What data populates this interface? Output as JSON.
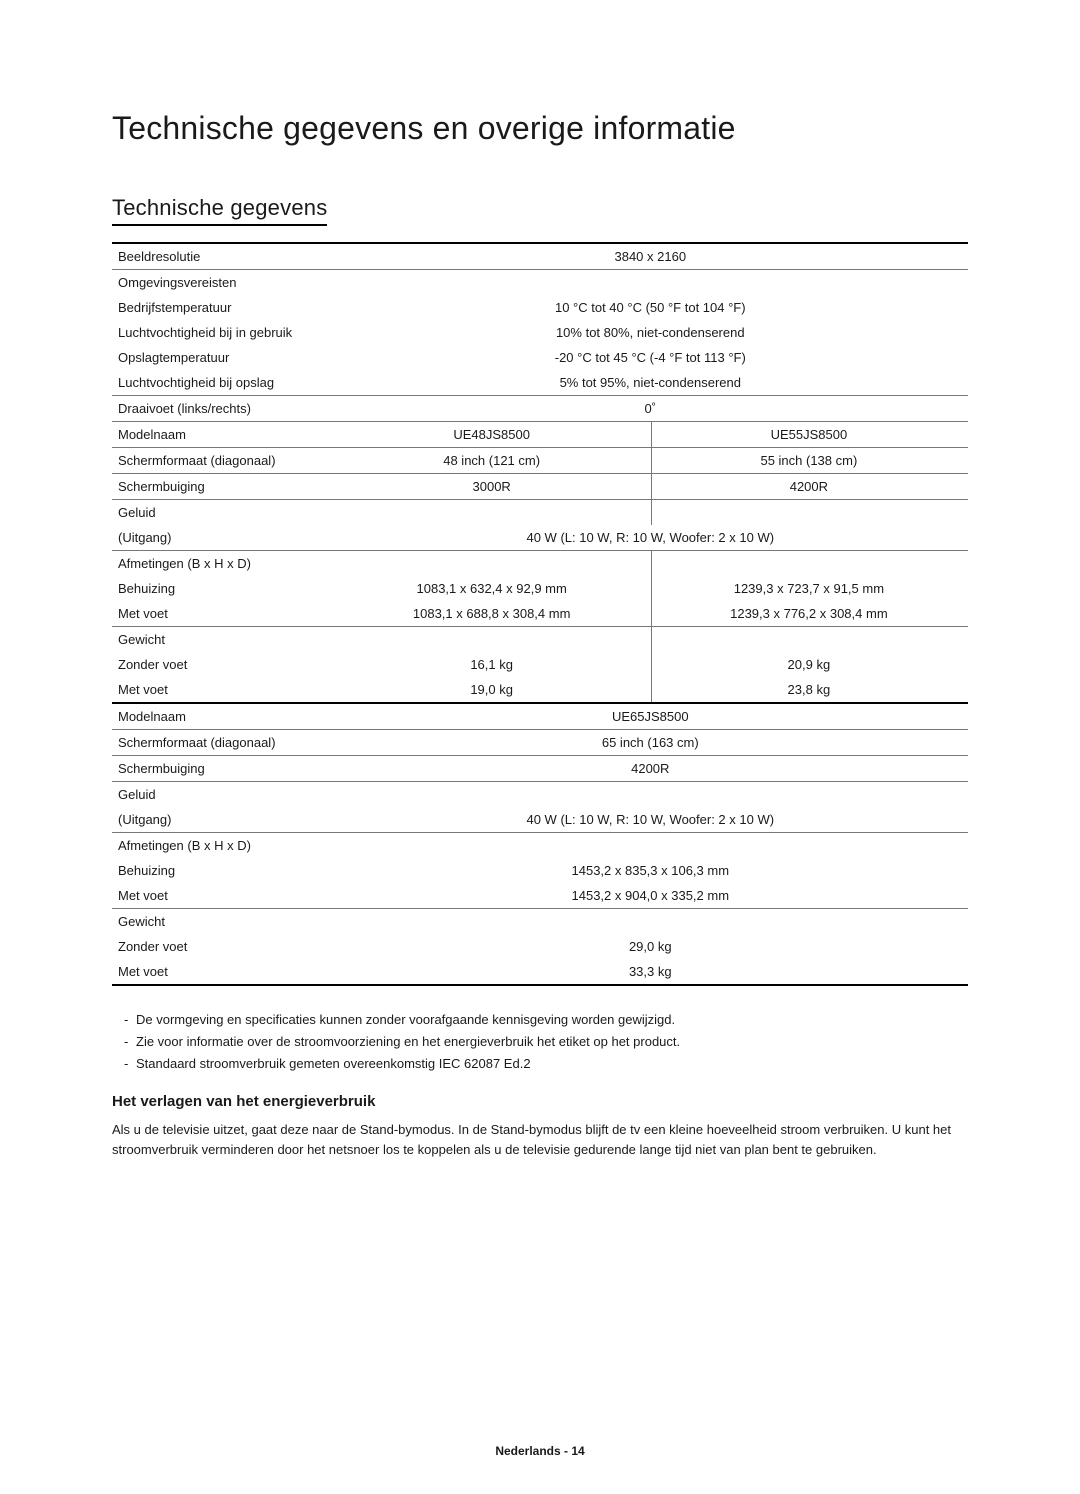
{
  "title": "Technische gegevens en overige informatie",
  "section_title": "Technische gegevens",
  "envText": {
    "envReq": "Omgevingsvereisten",
    "sound": "Geluid",
    "dims": "Afmetingen (B x H x D)",
    "weight": "Gewicht"
  },
  "rows1": [
    {
      "label": "Beeldresolutie",
      "full": "3840 x 2160",
      "cls": "section-top"
    },
    {
      "label": "Omgevingsvereisten",
      "full": "",
      "cls": "noborder"
    },
    {
      "label": "Bedrijfstemperatuur",
      "full": "10 °C tot 40 °C (50 °F tot 104 °F)",
      "cls": "noborder"
    },
    {
      "label": "Luchtvochtigheid bij in gebruik",
      "full": "10% tot 80%, niet-condenserend",
      "cls": "noborder"
    },
    {
      "label": "Opslagtemperatuur",
      "full": "-20 °C tot 45 °C (-4 °F tot 113 °F)",
      "cls": "noborder"
    },
    {
      "label": "Luchtvochtigheid bij opslag",
      "full": "5% tot 95%, niet-condenserend"
    },
    {
      "label": "Draaivoet (links/rechts)",
      "full": "0˚"
    },
    {
      "label": "Modelnaam",
      "a": "UE48JS8500",
      "b": "UE55JS8500",
      "split": true
    },
    {
      "label": "Schermformaat (diagonaal)",
      "a": "48 inch (121 cm)",
      "b": "55 inch (138 cm)",
      "split": true
    },
    {
      "label": "Schermbuiging",
      "a": "3000R",
      "b": "4200R",
      "split": true
    },
    {
      "label": "Geluid",
      "a": "",
      "b": "",
      "split": true,
      "cls": "noborder"
    },
    {
      "label": "(Uitgang)",
      "full": "40 W (L: 10 W, R: 10 W, Woofer: 2 x 10 W)"
    },
    {
      "label": "Afmetingen (B x H x D)",
      "a": "",
      "b": "",
      "split": true,
      "cls": "noborder"
    },
    {
      "label": "Behuizing",
      "a": "1083,1 x 632,4 x 92,9 mm",
      "b": "1239,3 x 723,7 x 91,5 mm",
      "split": true,
      "cls": "noborder"
    },
    {
      "label": "Met voet",
      "a": "1083,1 x 688,8 x 308,4 mm",
      "b": "1239,3 x 776,2 x 308,4 mm",
      "split": true
    },
    {
      "label": "Gewicht",
      "a": "",
      "b": "",
      "split": true,
      "cls": "noborder"
    },
    {
      "label": "Zonder voet",
      "a": "16,1 kg",
      "b": "20,9 kg",
      "split": true,
      "cls": "noborder"
    },
    {
      "label": "Met voet",
      "a": "19,0 kg",
      "b": "23,8 kg",
      "split": true,
      "cls": "section-bottom"
    },
    {
      "label": "Modelnaam",
      "full": "UE65JS8500"
    },
    {
      "label": "Schermformaat (diagonaal)",
      "full": "65 inch (163 cm)"
    },
    {
      "label": "Schermbuiging",
      "full": "4200R"
    },
    {
      "label": "Geluid",
      "full": "",
      "cls": "noborder"
    },
    {
      "label": "(Uitgang)",
      "full": "40 W (L: 10 W, R: 10 W, Woofer: 2 x 10 W)"
    },
    {
      "label": "Afmetingen (B x H x D)",
      "full": "",
      "cls": "noborder"
    },
    {
      "label": "Behuizing",
      "full": "1453,2 x 835,3 x 106,3 mm",
      "cls": "noborder"
    },
    {
      "label": "Met voet",
      "full": "1453,2 x 904,0 x 335,2 mm"
    },
    {
      "label": "Gewicht",
      "full": "",
      "cls": "noborder"
    },
    {
      "label": "Zonder voet",
      "full": "29,0 kg",
      "cls": "noborder"
    },
    {
      "label": "Met voet",
      "full": "33,3 kg",
      "cls": "section-bottom"
    }
  ],
  "notes": [
    "De vormgeving en specificaties kunnen zonder voorafgaande kennisgeving worden gewijzigd.",
    "Zie voor informatie over de stroomvoorziening en het energieverbruik het etiket op het product.",
    "Standaard stroomverbruik gemeten overeenkomstig IEC 62087 Ed.2"
  ],
  "energy": {
    "title": "Het verlagen van het energieverbruik",
    "body": "Als u de televisie uitzet, gaat deze naar de Stand-bymodus. In de Stand-bymodus blijft de tv een kleine hoeveelheid stroom verbruiken. U kunt het stroomverbruik verminderen door het netsnoer los te koppelen als u de televisie gedurende lange tijd niet van plan bent te gebruiken."
  },
  "footer": "Nederlands - 14"
}
